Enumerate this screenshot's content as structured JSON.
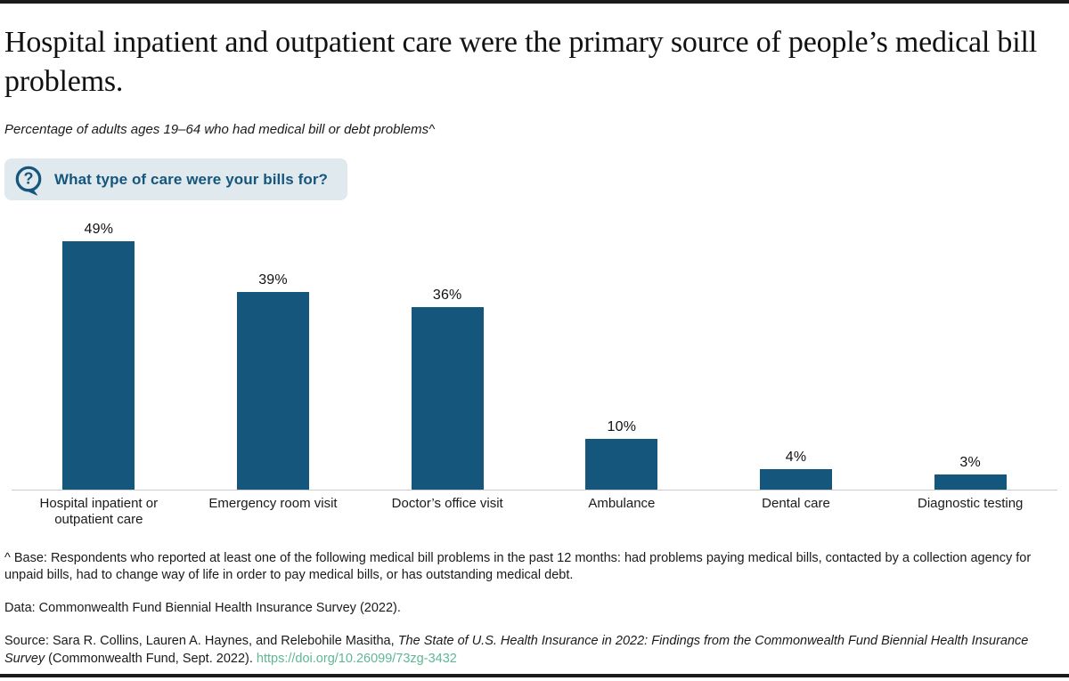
{
  "page": {
    "title": "Hospital inpatient and outpatient care were the primary source of people’s medical bill problems.",
    "subtitle": "Percentage of adults ages 19–64 who had medical bill or debt problems^"
  },
  "question_badge": {
    "icon": "question-speech-bubble-icon",
    "label": "What type of care were your bills for?"
  },
  "chart_data": {
    "type": "bar",
    "title": "",
    "xlabel": "",
    "ylabel": "",
    "categories": [
      "Hospital inpatient or outpatient care",
      "Emergency room visit",
      "Doctor’s office visit",
      "Ambulance",
      "Dental care",
      "Diagnostic testing"
    ],
    "values": [
      49,
      39,
      36,
      10,
      4,
      3
    ],
    "value_labels": [
      "49%",
      "39%",
      "36%",
      "10%",
      "4%",
      "3%"
    ],
    "unit": "percent",
    "ylim": [
      0,
      53
    ],
    "grid": false,
    "legend": "none",
    "orientation": "vertical",
    "bar_color": "#15567c"
  },
  "footnotes": {
    "base_note": "^ Base: Respondents who reported at least one of the following medical bill problems in the past 12 months: had problems paying medical bills, contacted by a collection agency for unpaid bills, had to change way of life in order to pay medical bills, or has outstanding medical debt.",
    "data_note": "Data: Commonwealth Fund Biennial Health Insurance Survey (2022).",
    "source_prefix": "Source: Sara R. Collins, Lauren A. Haynes, and Relebohile Masitha, ",
    "source_title_italic": "The State of U.S. Health Insurance in 2022: Findings from the Commonwealth Fund Biennial Health Insurance Survey",
    "source_suffix": " (Commonwealth Fund, Sept. 2022). ",
    "doi_link": "https://doi.org/10.26099/73zg-3432"
  },
  "colors": {
    "bar": "#15567c",
    "badge_background": "#dfe9ee",
    "badge_text": "#15567c",
    "axis_line": "#cccccc",
    "link": "#5fb794",
    "rule": "#1a1a1a"
  }
}
